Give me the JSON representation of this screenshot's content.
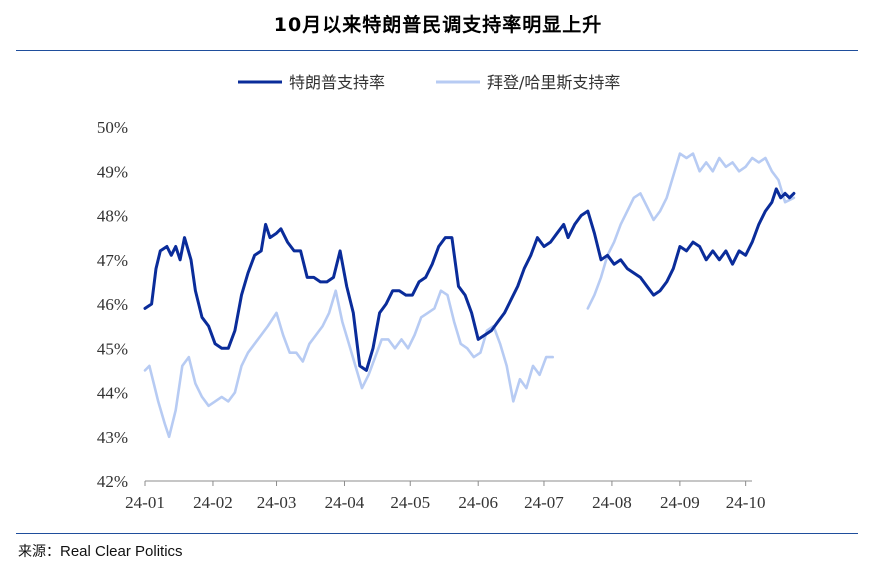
{
  "header": {
    "title": "10月以来特朗普民调支持率明显上升"
  },
  "footer": {
    "source_label": "来源：",
    "source_name": "Real Clear Politics"
  },
  "chart_data": {
    "type": "line",
    "title": "10月以来特朗普民调支持率明显上升",
    "xlabel": "",
    "ylabel": "",
    "x_ticks": [
      "24-01",
      "24-02",
      "24-03",
      "24-04",
      "24-05",
      "24-06",
      "24-07",
      "24-08",
      "24-09",
      "24-10"
    ],
    "y_ticks": [
      "42%",
      "43%",
      "44%",
      "45%",
      "46%",
      "47%",
      "48%",
      "49%",
      "50%"
    ],
    "ylim": [
      42,
      50
    ],
    "grid": false,
    "legend_position": "top-center",
    "series": [
      {
        "name": "特朗普支持率",
        "color": "#0a2c9a",
        "points": [
          [
            "2024-01-01",
            45.9
          ],
          [
            "2024-01-04",
            46.0
          ],
          [
            "2024-01-06",
            46.8
          ],
          [
            "2024-01-08",
            47.2
          ],
          [
            "2024-01-11",
            47.3
          ],
          [
            "2024-01-13",
            47.1
          ],
          [
            "2024-01-15",
            47.3
          ],
          [
            "2024-01-17",
            47.0
          ],
          [
            "2024-01-19",
            47.5
          ],
          [
            "2024-01-22",
            47.0
          ],
          [
            "2024-01-24",
            46.3
          ],
          [
            "2024-01-27",
            45.7
          ],
          [
            "2024-01-30",
            45.5
          ],
          [
            "2024-02-02",
            45.1
          ],
          [
            "2024-02-05",
            45.0
          ],
          [
            "2024-02-08",
            45.0
          ],
          [
            "2024-02-11",
            45.4
          ],
          [
            "2024-02-14",
            46.2
          ],
          [
            "2024-02-17",
            46.7
          ],
          [
            "2024-02-20",
            47.1
          ],
          [
            "2024-02-23",
            47.2
          ],
          [
            "2024-02-25",
            47.8
          ],
          [
            "2024-02-27",
            47.5
          ],
          [
            "2024-03-01",
            47.6
          ],
          [
            "2024-03-03",
            47.7
          ],
          [
            "2024-03-06",
            47.4
          ],
          [
            "2024-03-09",
            47.2
          ],
          [
            "2024-03-12",
            47.2
          ],
          [
            "2024-03-15",
            46.6
          ],
          [
            "2024-03-18",
            46.6
          ],
          [
            "2024-03-21",
            46.5
          ],
          [
            "2024-03-24",
            46.5
          ],
          [
            "2024-03-27",
            46.6
          ],
          [
            "2024-03-30",
            47.2
          ],
          [
            "2024-04-02",
            46.4
          ],
          [
            "2024-04-05",
            45.8
          ],
          [
            "2024-04-08",
            44.6
          ],
          [
            "2024-04-11",
            44.5
          ],
          [
            "2024-04-14",
            45.0
          ],
          [
            "2024-04-17",
            45.8
          ],
          [
            "2024-04-20",
            46.0
          ],
          [
            "2024-04-23",
            46.3
          ],
          [
            "2024-04-26",
            46.3
          ],
          [
            "2024-04-29",
            46.2
          ],
          [
            "2024-05-02",
            46.2
          ],
          [
            "2024-05-05",
            46.5
          ],
          [
            "2024-05-08",
            46.6
          ],
          [
            "2024-05-11",
            46.9
          ],
          [
            "2024-05-14",
            47.3
          ],
          [
            "2024-05-17",
            47.5
          ],
          [
            "2024-05-20",
            47.5
          ],
          [
            "2024-05-23",
            46.4
          ],
          [
            "2024-05-26",
            46.2
          ],
          [
            "2024-05-29",
            45.8
          ],
          [
            "2024-06-01",
            45.2
          ],
          [
            "2024-06-04",
            45.3
          ],
          [
            "2024-06-07",
            45.4
          ],
          [
            "2024-06-10",
            45.6
          ],
          [
            "2024-06-13",
            45.8
          ],
          [
            "2024-06-16",
            46.1
          ],
          [
            "2024-06-19",
            46.4
          ],
          [
            "2024-06-22",
            46.8
          ],
          [
            "2024-06-25",
            47.1
          ],
          [
            "2024-06-28",
            47.5
          ],
          [
            "2024-07-01",
            47.3
          ],
          [
            "2024-07-04",
            47.4
          ],
          [
            "2024-07-07",
            47.6
          ],
          [
            "2024-07-10",
            47.8
          ],
          [
            "2024-07-12",
            47.5
          ],
          [
            "2024-07-15",
            47.8
          ],
          [
            "2024-07-18",
            48.0
          ],
          [
            "2024-07-21",
            48.1
          ],
          [
            "2024-07-24",
            47.6
          ],
          [
            "2024-07-27",
            47.0
          ],
          [
            "2024-07-30",
            47.1
          ],
          [
            "2024-08-02",
            46.9
          ],
          [
            "2024-08-05",
            47.0
          ],
          [
            "2024-08-08",
            46.8
          ],
          [
            "2024-08-11",
            46.7
          ],
          [
            "2024-08-14",
            46.6
          ],
          [
            "2024-08-17",
            46.4
          ],
          [
            "2024-08-20",
            46.2
          ],
          [
            "2024-08-23",
            46.3
          ],
          [
            "2024-08-26",
            46.5
          ],
          [
            "2024-08-29",
            46.8
          ],
          [
            "2024-09-01",
            47.3
          ],
          [
            "2024-09-04",
            47.2
          ],
          [
            "2024-09-07",
            47.4
          ],
          [
            "2024-09-10",
            47.3
          ],
          [
            "2024-09-13",
            47.0
          ],
          [
            "2024-09-16",
            47.2
          ],
          [
            "2024-09-19",
            47.0
          ],
          [
            "2024-09-22",
            47.2
          ],
          [
            "2024-09-25",
            46.9
          ],
          [
            "2024-09-28",
            47.2
          ],
          [
            "2024-10-01",
            47.1
          ],
          [
            "2024-10-04",
            47.4
          ],
          [
            "2024-10-07",
            47.8
          ],
          [
            "2024-10-10",
            48.1
          ],
          [
            "2024-10-13",
            48.3
          ],
          [
            "2024-10-15",
            48.6
          ],
          [
            "2024-10-17",
            48.4
          ],
          [
            "2024-10-19",
            48.5
          ],
          [
            "2024-10-21",
            48.4
          ],
          [
            "2024-10-23",
            48.5
          ]
        ]
      },
      {
        "name": "拜登/哈里斯支持率",
        "color": "#b7cbf3",
        "points": [
          [
            "2024-01-01",
            44.5
          ],
          [
            "2024-01-03",
            44.6
          ],
          [
            "2024-01-05",
            44.2
          ],
          [
            "2024-01-07",
            43.8
          ],
          [
            "2024-01-10",
            43.3
          ],
          [
            "2024-01-12",
            43.0
          ],
          [
            "2024-01-15",
            43.6
          ],
          [
            "2024-01-18",
            44.6
          ],
          [
            "2024-01-21",
            44.8
          ],
          [
            "2024-01-24",
            44.2
          ],
          [
            "2024-01-27",
            43.9
          ],
          [
            "2024-01-30",
            43.7
          ],
          [
            "2024-02-02",
            43.8
          ],
          [
            "2024-02-05",
            43.9
          ],
          [
            "2024-02-08",
            43.8
          ],
          [
            "2024-02-11",
            44.0
          ],
          [
            "2024-02-14",
            44.6
          ],
          [
            "2024-02-17",
            44.9
          ],
          [
            "2024-02-20",
            45.1
          ],
          [
            "2024-02-23",
            45.3
          ],
          [
            "2024-02-26",
            45.5
          ],
          [
            "2024-03-01",
            45.8
          ],
          [
            "2024-03-04",
            45.3
          ],
          [
            "2024-03-07",
            44.9
          ],
          [
            "2024-03-10",
            44.9
          ],
          [
            "2024-03-13",
            44.7
          ],
          [
            "2024-03-16",
            45.1
          ],
          [
            "2024-03-19",
            45.3
          ],
          [
            "2024-03-22",
            45.5
          ],
          [
            "2024-03-25",
            45.8
          ],
          [
            "2024-03-28",
            46.3
          ],
          [
            "2024-03-31",
            45.6
          ],
          [
            "2024-04-03",
            45.1
          ],
          [
            "2024-04-06",
            44.6
          ],
          [
            "2024-04-09",
            44.1
          ],
          [
            "2024-04-12",
            44.4
          ],
          [
            "2024-04-15",
            44.8
          ],
          [
            "2024-04-18",
            45.2
          ],
          [
            "2024-04-21",
            45.2
          ],
          [
            "2024-04-24",
            45.0
          ],
          [
            "2024-04-27",
            45.2
          ],
          [
            "2024-04-30",
            45.0
          ],
          [
            "2024-05-03",
            45.3
          ],
          [
            "2024-05-06",
            45.7
          ],
          [
            "2024-05-09",
            45.8
          ],
          [
            "2024-05-12",
            45.9
          ],
          [
            "2024-05-15",
            46.3
          ],
          [
            "2024-05-18",
            46.2
          ],
          [
            "2024-05-21",
            45.6
          ],
          [
            "2024-05-24",
            45.1
          ],
          [
            "2024-05-27",
            45.0
          ],
          [
            "2024-05-30",
            44.8
          ],
          [
            "2024-06-02",
            44.9
          ],
          [
            "2024-06-05",
            45.4
          ],
          [
            "2024-06-08",
            45.5
          ],
          [
            "2024-06-11",
            45.1
          ],
          [
            "2024-06-14",
            44.6
          ],
          [
            "2024-06-17",
            43.8
          ],
          [
            "2024-06-20",
            44.3
          ],
          [
            "2024-06-23",
            44.1
          ],
          [
            "2024-06-26",
            44.6
          ],
          [
            "2024-06-29",
            44.4
          ],
          [
            "2024-07-02",
            44.8
          ],
          [
            "2024-07-05",
            44.8
          ],
          [
            "2024-07-21",
            45.9
          ],
          [
            "2024-07-24",
            46.2
          ],
          [
            "2024-07-27",
            46.6
          ],
          [
            "2024-07-30",
            47.1
          ],
          [
            "2024-08-02",
            47.4
          ],
          [
            "2024-08-05",
            47.8
          ],
          [
            "2024-08-08",
            48.1
          ],
          [
            "2024-08-11",
            48.4
          ],
          [
            "2024-08-14",
            48.5
          ],
          [
            "2024-08-17",
            48.2
          ],
          [
            "2024-08-20",
            47.9
          ],
          [
            "2024-08-23",
            48.1
          ],
          [
            "2024-08-26",
            48.4
          ],
          [
            "2024-08-29",
            48.9
          ],
          [
            "2024-09-01",
            49.4
          ],
          [
            "2024-09-04",
            49.3
          ],
          [
            "2024-09-07",
            49.4
          ],
          [
            "2024-09-10",
            49.0
          ],
          [
            "2024-09-13",
            49.2
          ],
          [
            "2024-09-16",
            49.0
          ],
          [
            "2024-09-19",
            49.3
          ],
          [
            "2024-09-22",
            49.1
          ],
          [
            "2024-09-25",
            49.2
          ],
          [
            "2024-09-28",
            49.0
          ],
          [
            "2024-10-01",
            49.1
          ],
          [
            "2024-10-04",
            49.3
          ],
          [
            "2024-10-07",
            49.2
          ],
          [
            "2024-10-10",
            49.3
          ],
          [
            "2024-10-13",
            49.0
          ],
          [
            "2024-10-16",
            48.8
          ],
          [
            "2024-10-19",
            48.3
          ],
          [
            "2024-10-23",
            48.4
          ]
        ]
      }
    ]
  }
}
